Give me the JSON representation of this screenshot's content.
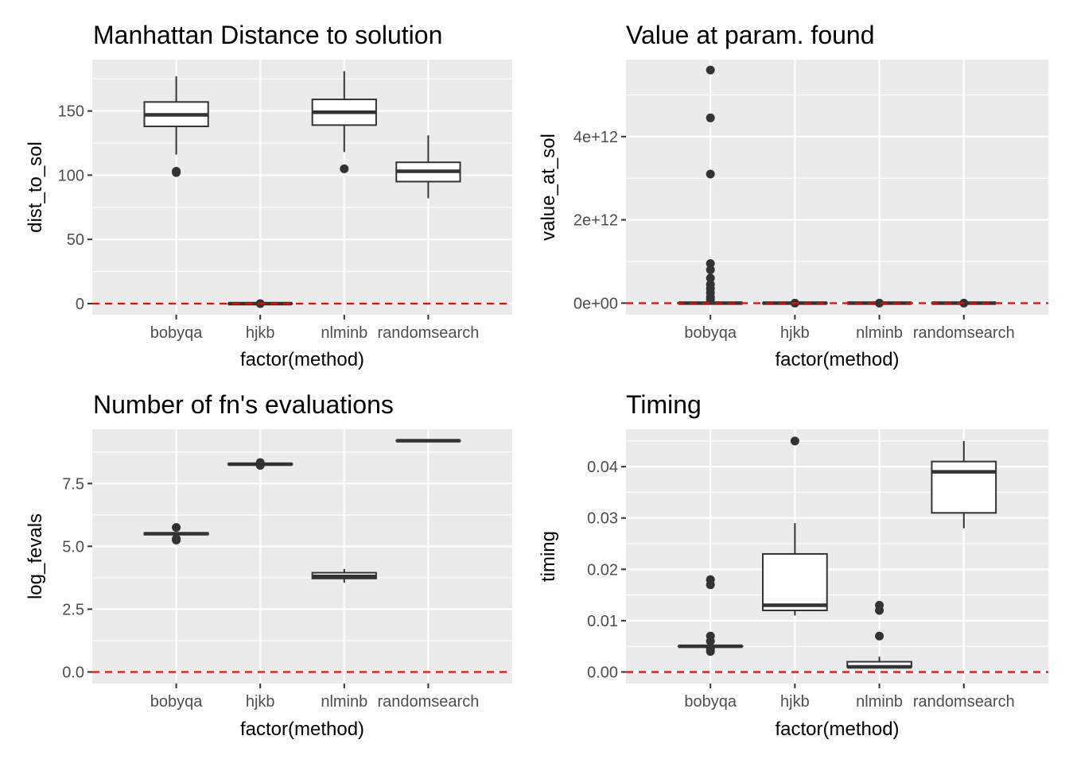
{
  "colors": {
    "panel_bg": "#ebebeb",
    "grid": "#ffffff",
    "box_stroke": "#333333",
    "box_fill": "#ffffff",
    "reference_line": "#ff0000"
  },
  "chart_data": [
    {
      "type": "boxplot",
      "title": "Manhattan Distance to solution",
      "xlabel": "factor(method)",
      "ylabel": "dist_to_sol",
      "categories": [
        "bobyqa",
        "hjkb",
        "nlminb",
        "randomsearch"
      ],
      "ylim": [
        -8.7,
        190
      ],
      "yticks": [
        0,
        50,
        100,
        150
      ],
      "ytick_labels": [
        "0",
        "50",
        "100",
        "150"
      ],
      "grid": true,
      "reference_line": {
        "y": 0,
        "style": "dashed"
      },
      "boxes": [
        {
          "category": "bobyqa",
          "whisker_low": 116,
          "q1": 138,
          "median": 147,
          "q3": 157,
          "whisker_high": 177,
          "outliers": [
            102,
            103
          ]
        },
        {
          "category": "hjkb",
          "whisker_low": 0,
          "q1": 0,
          "median": 0,
          "q3": 0,
          "whisker_high": 0,
          "outliers": [
            0
          ]
        },
        {
          "category": "nlminb",
          "whisker_low": 118,
          "q1": 139,
          "median": 149,
          "q3": 159,
          "whisker_high": 181,
          "outliers": [
            105
          ]
        },
        {
          "category": "randomsearch",
          "whisker_low": 82,
          "q1": 95,
          "median": 103,
          "q3": 110,
          "whisker_high": 131,
          "outliers": []
        }
      ]
    },
    {
      "type": "boxplot",
      "title": "Value at param. found",
      "xlabel": "factor(method)",
      "ylabel": "value_at_sol",
      "categories": [
        "bobyqa",
        "hjkb",
        "nlminb",
        "randomsearch"
      ],
      "ylim": [
        -280000000000.0,
        5850000000000.0
      ],
      "yticks": [
        0,
        2000000000000.0,
        4000000000000.0
      ],
      "ytick_labels": [
        "0e+00",
        "2e+12",
        "4e+12"
      ],
      "grid": true,
      "reference_line": {
        "y": 0,
        "style": "dashed"
      },
      "boxes": [
        {
          "category": "bobyqa",
          "whisker_low": 0,
          "q1": 0,
          "median": 0,
          "q3": 0,
          "whisker_high": 0,
          "outliers": [
            5600000000000.0,
            4450000000000.0,
            3100000000000.0,
            950000000000.0,
            800000000000.0,
            600000000000.0,
            450000000000.0,
            350000000000.0,
            250000000000.0,
            150000000000.0,
            80000000000.0
          ]
        },
        {
          "category": "hjkb",
          "whisker_low": 0,
          "q1": 0,
          "median": 0,
          "q3": 0,
          "whisker_high": 0,
          "outliers": [
            0
          ]
        },
        {
          "category": "nlminb",
          "whisker_low": 0,
          "q1": 0,
          "median": 0,
          "q3": 0,
          "whisker_high": 0,
          "outliers": [
            0
          ]
        },
        {
          "category": "randomsearch",
          "whisker_low": 0,
          "q1": 0,
          "median": 0,
          "q3": 0,
          "whisker_high": 0,
          "outliers": [
            0
          ]
        }
      ]
    },
    {
      "type": "boxplot",
      "title": "Number of fn's evaluations",
      "xlabel": "factor(method)",
      "ylabel": "log_fevals",
      "categories": [
        "bobyqa",
        "hjkb",
        "nlminb",
        "randomsearch"
      ],
      "ylim": [
        -0.46,
        9.66
      ],
      "yticks": [
        0,
        2.5,
        5,
        7.5
      ],
      "ytick_labels": [
        "0.0",
        "2.5",
        "5.0",
        "7.5"
      ],
      "grid": true,
      "reference_line": {
        "y": 0,
        "style": "dashed"
      },
      "boxes": [
        {
          "category": "bobyqa",
          "whisker_low": 5.47,
          "q1": 5.47,
          "median": 5.5,
          "q3": 5.53,
          "whisker_high": 5.53,
          "outliers": [
            5.75,
            5.25,
            5.3
          ]
        },
        {
          "category": "hjkb",
          "whisker_low": 8.25,
          "q1": 8.25,
          "median": 8.27,
          "q3": 8.29,
          "whisker_high": 8.29,
          "outliers": [
            8.33,
            8.22
          ]
        },
        {
          "category": "nlminb",
          "whisker_low": 3.55,
          "q1": 3.72,
          "median": 3.8,
          "q3": 3.95,
          "whisker_high": 4.1,
          "outliers": []
        },
        {
          "category": "randomsearch",
          "whisker_low": 9.2,
          "q1": 9.2,
          "median": 9.2,
          "q3": 9.2,
          "whisker_high": 9.2,
          "outliers": []
        }
      ]
    },
    {
      "type": "boxplot",
      "title": "Timing",
      "xlabel": "factor(method)",
      "ylabel": "timing",
      "categories": [
        "bobyqa",
        "hjkb",
        "nlminb",
        "randomsearch"
      ],
      "ylim": [
        -0.00225,
        0.0473
      ],
      "yticks": [
        0,
        0.01,
        0.02,
        0.03,
        0.04
      ],
      "ytick_labels": [
        "0.00",
        "0.01",
        "0.02",
        "0.03",
        "0.04"
      ],
      "grid": true,
      "reference_line": {
        "y": 0,
        "style": "dashed"
      },
      "boxes": [
        {
          "category": "bobyqa",
          "whisker_low": 0.005,
          "q1": 0.005,
          "median": 0.005,
          "q3": 0.005,
          "whisker_high": 0.005,
          "outliers": [
            0.018,
            0.017,
            0.007,
            0.006,
            0.0045,
            0.004
          ]
        },
        {
          "category": "hjkb",
          "whisker_low": 0.011,
          "q1": 0.012,
          "median": 0.013,
          "q3": 0.023,
          "whisker_high": 0.029,
          "outliers": [
            0.045
          ]
        },
        {
          "category": "nlminb",
          "whisker_low": 0.001,
          "q1": 0.001,
          "median": 0.001,
          "q3": 0.002,
          "whisker_high": 0.003,
          "outliers": [
            0.013,
            0.012,
            0.007
          ]
        },
        {
          "category": "randomsearch",
          "whisker_low": 0.028,
          "q1": 0.031,
          "median": 0.039,
          "q3": 0.041,
          "whisker_high": 0.045,
          "outliers": []
        }
      ]
    }
  ]
}
